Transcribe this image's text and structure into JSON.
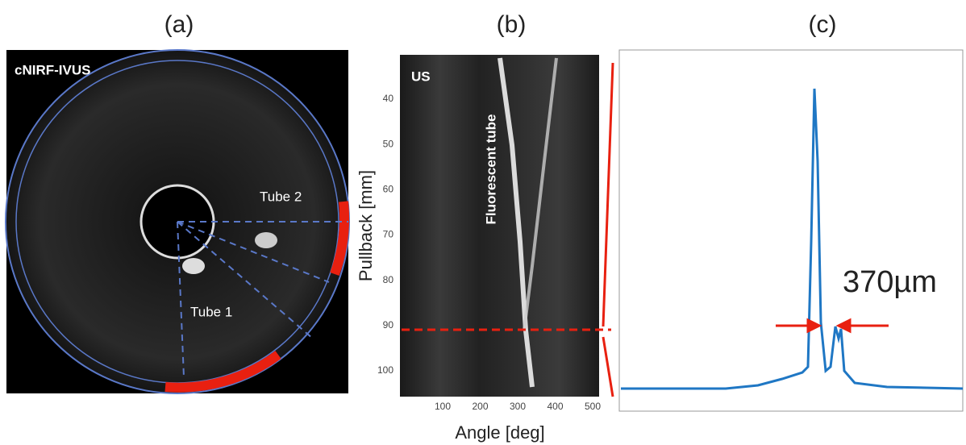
{
  "panel_a": {
    "label": "(a)",
    "title": "cNIRF-IVUS",
    "annotations": [
      "Tube 2",
      "Tube 1"
    ]
  },
  "panel_b": {
    "label": "(b)",
    "title": "US",
    "annotation": "Fluorescent tube",
    "x_label": "Angle [deg]",
    "y_label": "Pullback [mm]",
    "xticks": [
      100,
      200,
      300,
      400,
      500
    ],
    "yticks": [
      40,
      50,
      60,
      70,
      80,
      90,
      100
    ]
  },
  "panel_c": {
    "label": "(c)",
    "annotation": "370µm"
  }
}
